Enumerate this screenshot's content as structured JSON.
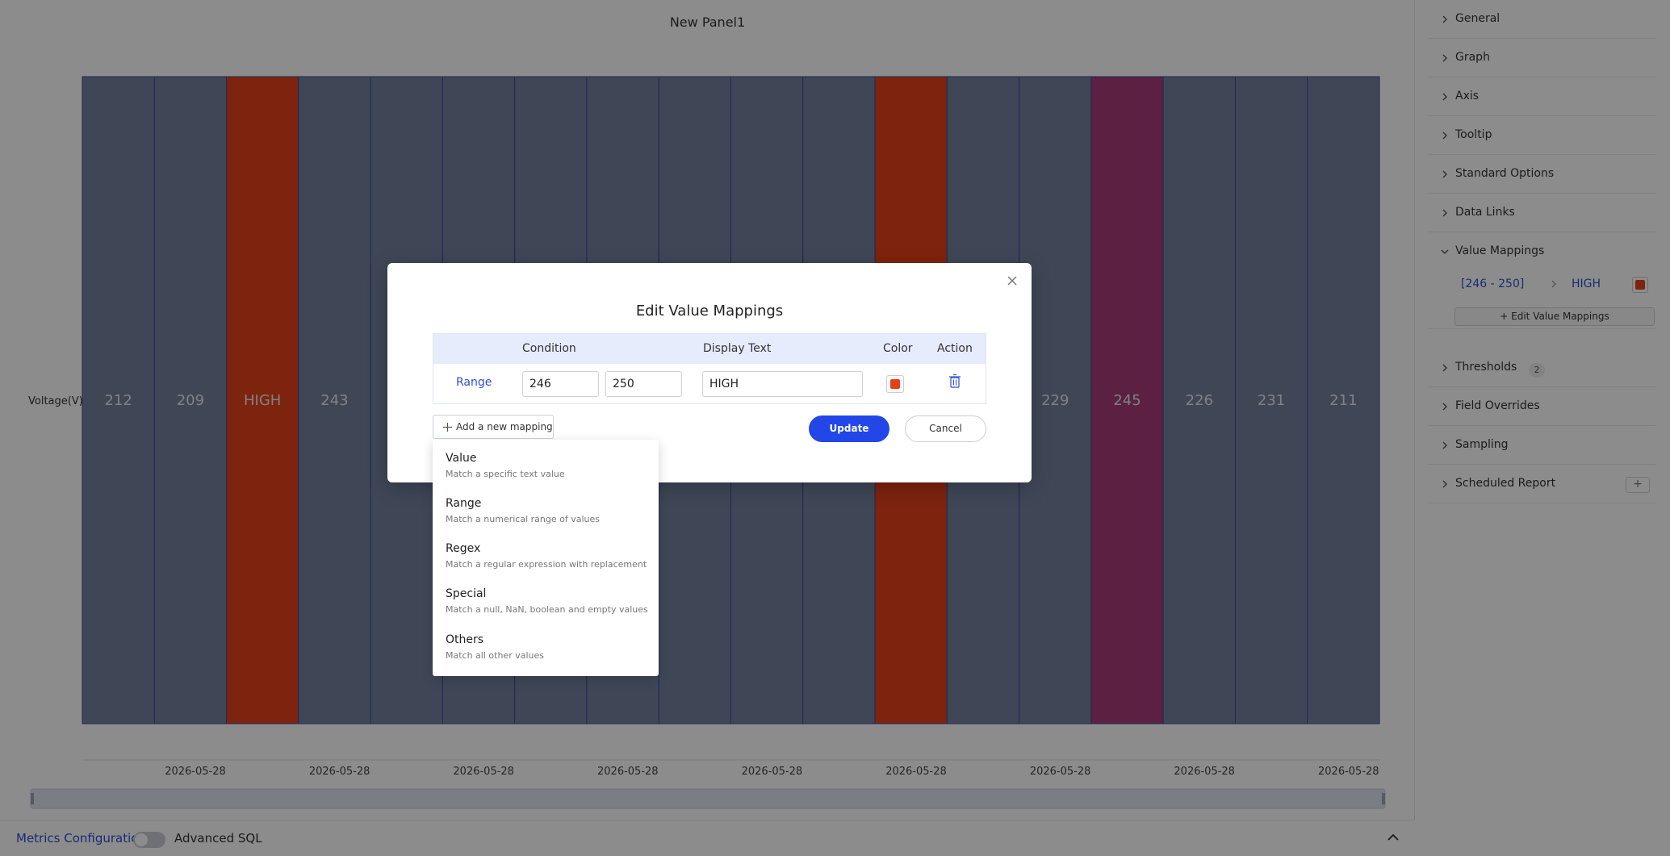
{
  "panel": {
    "title": "New Panel1"
  },
  "chart_data": {
    "type": "bar",
    "ylabel": "Voltage(V)",
    "bar_labels": [
      "212",
      "209",
      "HIGH",
      "243",
      "",
      "",
      "",
      "",
      "",
      "",
      "",
      "",
      "",
      "229",
      "245",
      "226",
      "231",
      "211"
    ],
    "bar_colors": [
      "#73829f",
      "#73829f",
      "#e5401b",
      "#73829f",
      "#73829f",
      "#73829f",
      "#73829f",
      "#73829f",
      "#73829f",
      "#73829f",
      "#73829f",
      "#e5401b",
      "#73829f",
      "#73829f",
      "#a63b78",
      "#73829f",
      "#73829f",
      "#73829f"
    ],
    "x_tick_labels": [
      "2026-05-28",
      "2026-05-28",
      "2026-05-28",
      "2026-05-28",
      "2026-05-28",
      "2026-05-28",
      "2026-05-28",
      "2026-05-28",
      "2026-05-28"
    ]
  },
  "metrics_bar": {
    "metrics_label": "Metrics Configuration",
    "sql_label": "Advanced SQL"
  },
  "sidebar": {
    "sections": [
      "General",
      "Graph",
      "Axis",
      "Tooltip",
      "Standard Options",
      "Data Links",
      "Value Mappings",
      "Thresholds",
      "Field Overrides",
      "Sampling",
      "Scheduled Report"
    ],
    "value_mapping": {
      "range": "[246 - 250]",
      "text": "HIGH",
      "color": "#e5401b"
    },
    "edit_button": "Edit Value Mappings",
    "thresholds_count": "2",
    "report_add": "+"
  },
  "modal": {
    "title": "Edit Value Mappings",
    "headers": {
      "condition": "Condition",
      "display_text": "Display Text",
      "color": "Color",
      "action": "Action"
    },
    "row": {
      "type": "Range",
      "from": "246",
      "to": "250",
      "display_text": "HIGH",
      "color": "#e5401b"
    },
    "add_mapping": "Add a new mapping",
    "update": "Update",
    "cancel": "Cancel"
  },
  "dropdown": {
    "options": [
      {
        "title": "Value",
        "desc": "Match a specific text value"
      },
      {
        "title": "Range",
        "desc": "Match a numerical range of values"
      },
      {
        "title": "Regex",
        "desc": "Match a regular expression with replacement"
      },
      {
        "title": "Special",
        "desc": "Match a null, NaN, boolean and empty values"
      },
      {
        "title": "Others",
        "desc": "Match all other values"
      }
    ]
  }
}
